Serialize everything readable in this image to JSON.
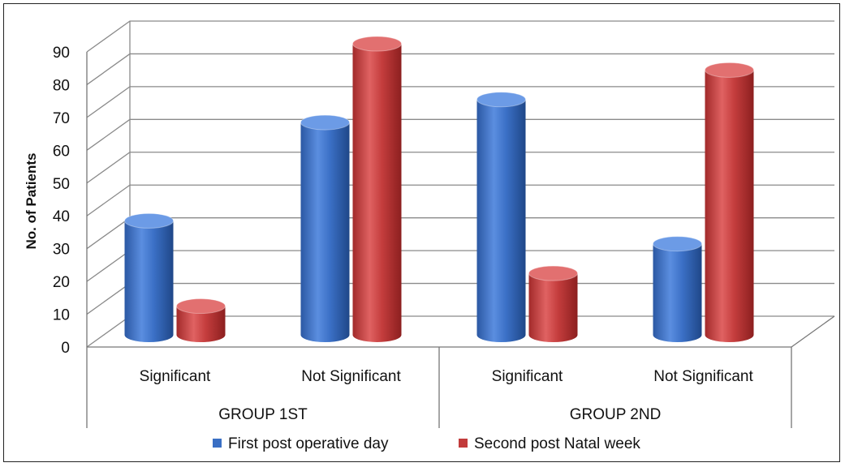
{
  "chart_data": {
    "type": "bar",
    "style": "3d-cylinder",
    "groups": [
      {
        "label": "GROUP 1ST",
        "categories": [
          "Significant",
          "Not Significant"
        ]
      },
      {
        "label": "GROUP 2ND",
        "categories": [
          "Significant",
          "Not Significant"
        ]
      }
    ],
    "categories": [
      "Significant",
      "Not Significant",
      "Significant",
      "Not Significant"
    ],
    "series": [
      {
        "name": "First post operative day",
        "color": "#3a6fc4",
        "values": [
          36,
          66,
          73,
          29
        ]
      },
      {
        "name": "Second post Natal week",
        "color": "#c23b3b",
        "values": [
          10,
          90,
          20,
          82
        ]
      }
    ],
    "xlabel": "",
    "ylabel": "No. of Patients",
    "ylim": [
      0,
      90
    ],
    "yticks": [
      0,
      10,
      20,
      30,
      40,
      50,
      60,
      70,
      80,
      90
    ],
    "grid": true,
    "legend": "bottom"
  }
}
